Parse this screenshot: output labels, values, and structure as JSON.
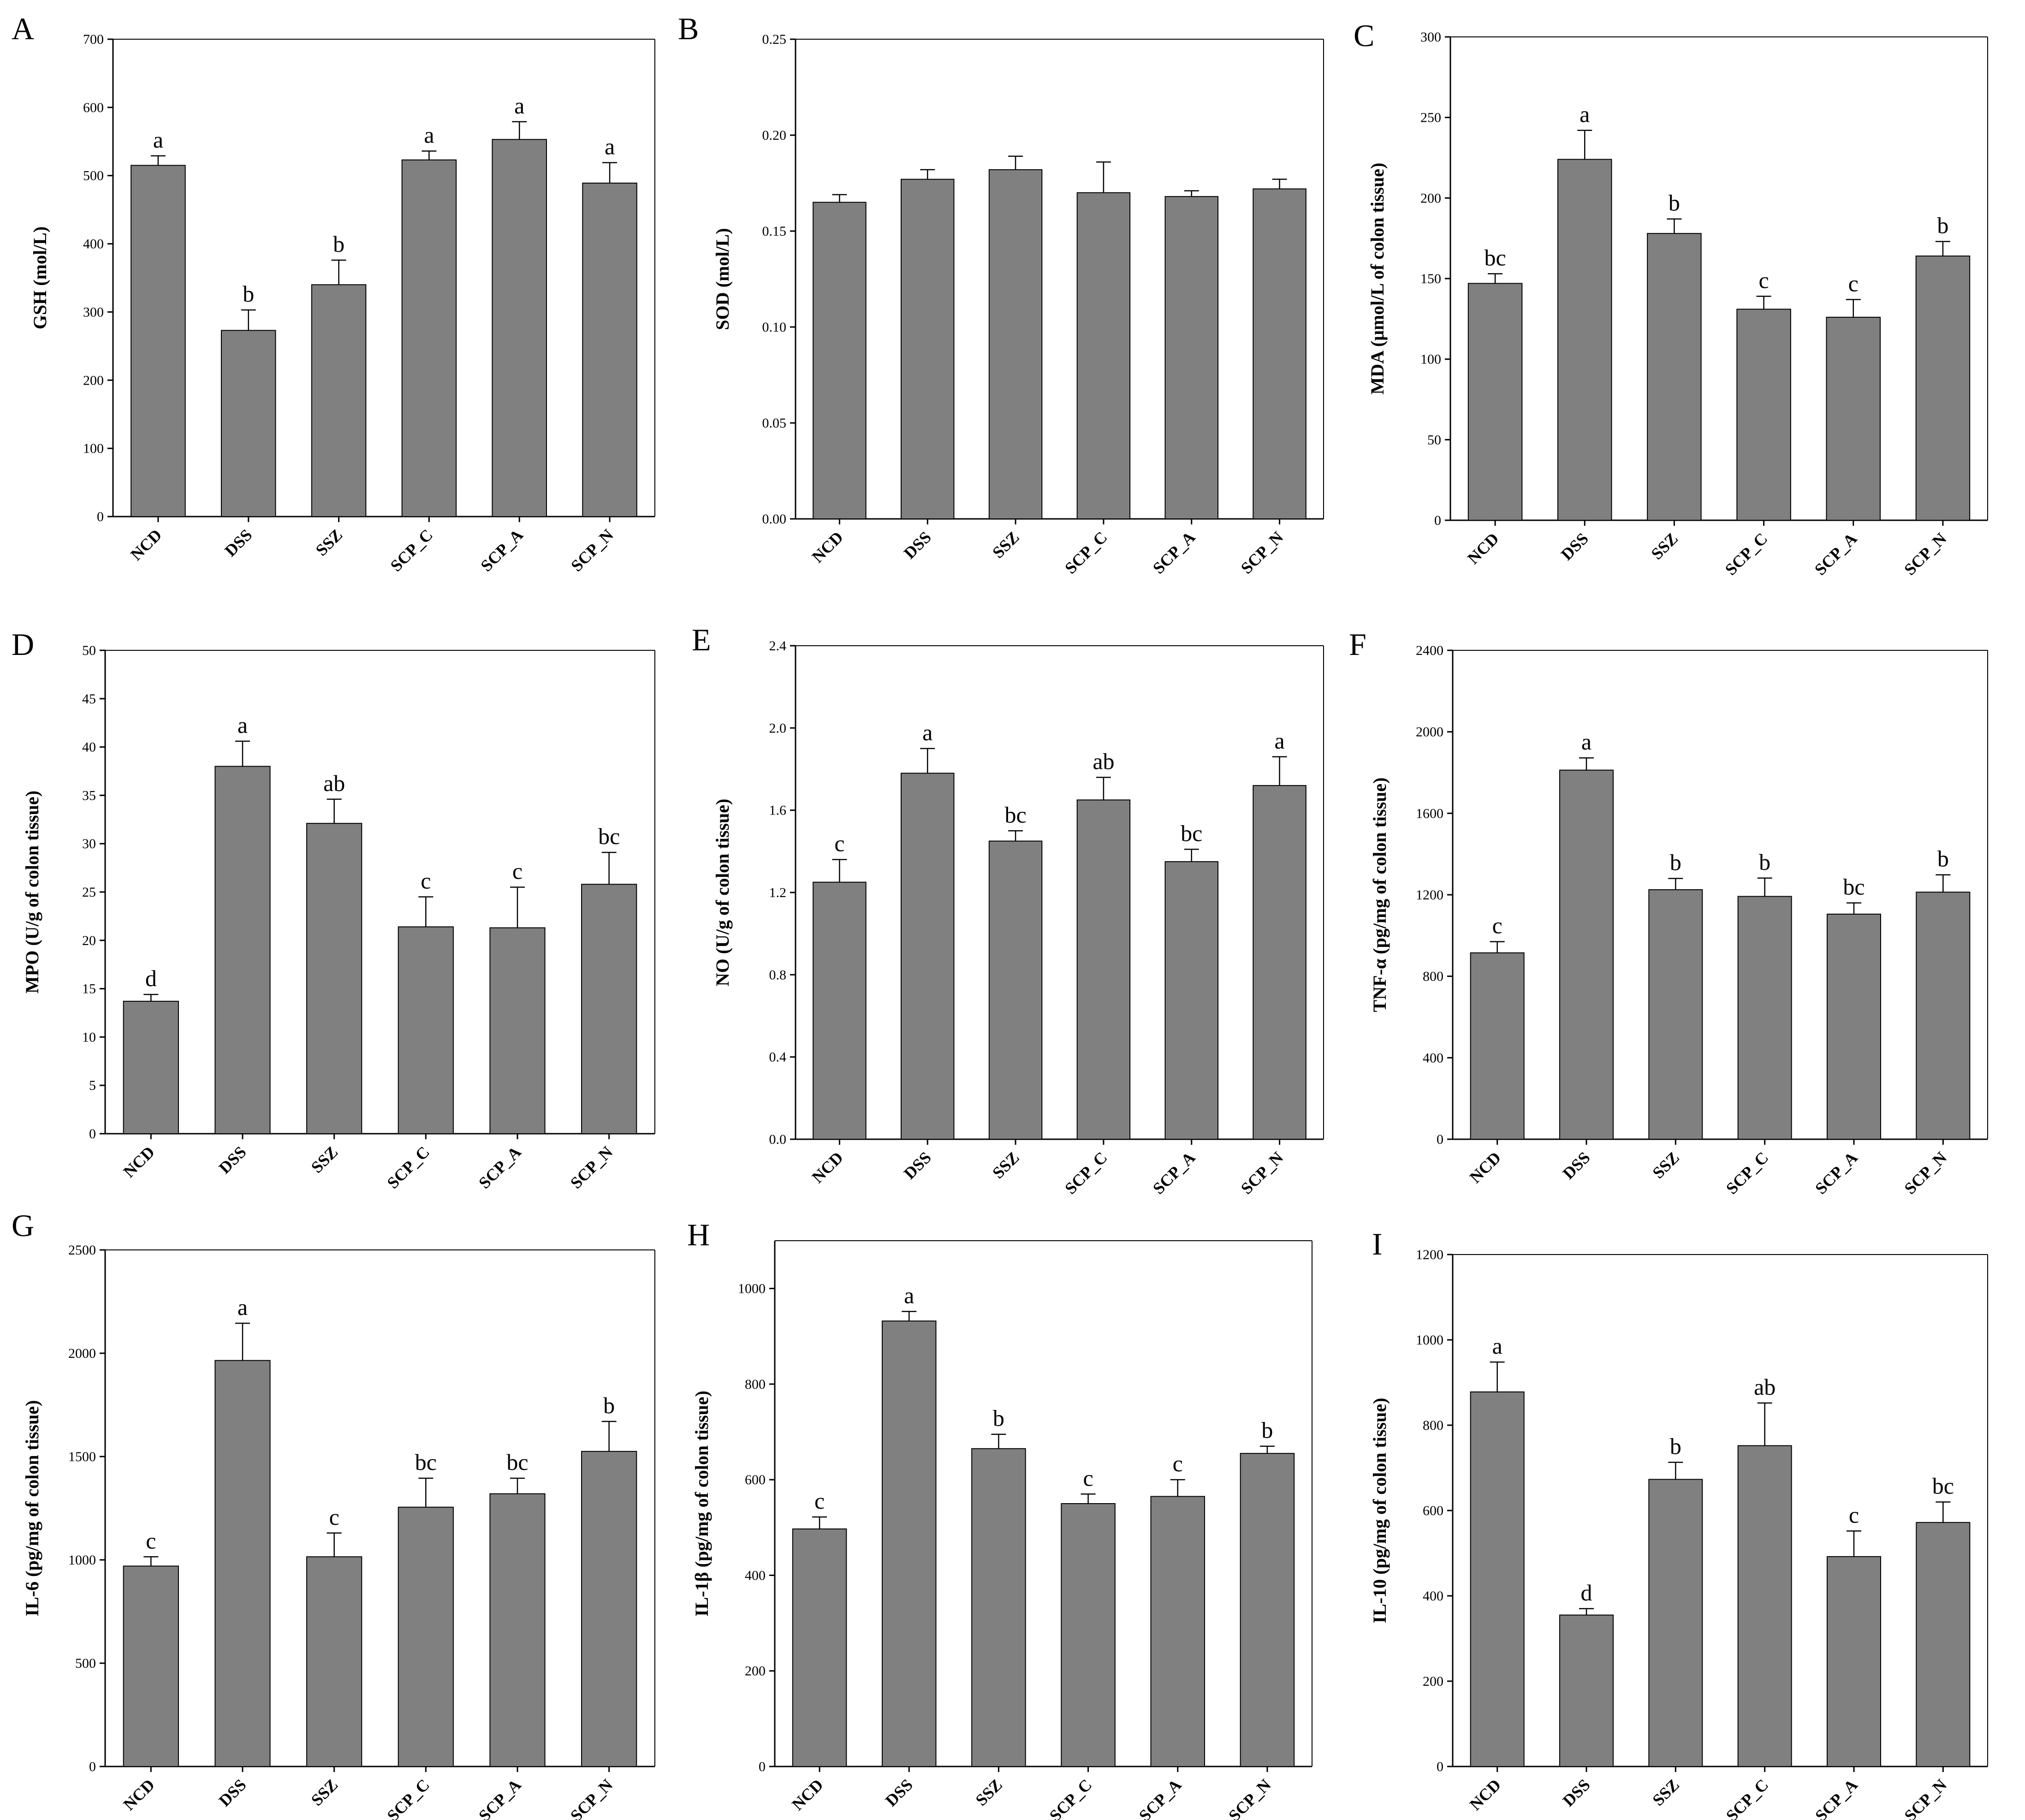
{
  "chart_data": [
    {
      "panel": "A",
      "type": "bar",
      "categories": [
        "NCD",
        "DSS",
        "SSZ",
        "SCP_C",
        "SCP_A",
        "SCP_N"
      ],
      "values": [
        515,
        273,
        340,
        523,
        553,
        489
      ],
      "errors": [
        14,
        30,
        36,
        13,
        26,
        30
      ],
      "labels": [
        "a",
        "b",
        "b",
        "a",
        "a",
        "a"
      ],
      "ylabel": "GSH (mol/L)",
      "ylim": [
        0,
        700
      ],
      "yticks": [
        0,
        100,
        200,
        300,
        400,
        500,
        600,
        700
      ],
      "bar_color": "#808080"
    },
    {
      "panel": "B",
      "type": "bar",
      "categories": [
        "NCD",
        "DSS",
        "SSZ",
        "SCP_C",
        "SCP_A",
        "SCP_N"
      ],
      "values": [
        0.165,
        0.177,
        0.182,
        0.17,
        0.168,
        0.172
      ],
      "errors": [
        0.004,
        0.005,
        0.007,
        0.016,
        0.003,
        0.005
      ],
      "labels": [
        "",
        "",
        "",
        "",
        "",
        ""
      ],
      "ylabel": "SOD (mol/L)",
      "ylim": [
        0,
        0.25
      ],
      "yticks": [
        "0.00",
        "0.05",
        "0.10",
        "0.15",
        "0.20",
        "0.25"
      ],
      "bar_color": "#808080"
    },
    {
      "panel": "C",
      "type": "bar",
      "categories": [
        "NCD",
        "DSS",
        "SSZ",
        "SCP_C",
        "SCP_A",
        "SCP_N"
      ],
      "values": [
        147,
        224,
        178,
        131,
        126,
        164
      ],
      "errors": [
        6,
        18,
        9,
        8,
        11,
        9
      ],
      "labels": [
        "bc",
        "a",
        "b",
        "c",
        "c",
        "b"
      ],
      "ylabel": "MDA (μmol/L of colon tissue)",
      "ylim": [
        0,
        300
      ],
      "yticks": [
        0,
        50,
        100,
        150,
        200,
        250,
        300
      ],
      "bar_color": "#808080"
    },
    {
      "panel": "D",
      "type": "bar",
      "categories": [
        "NCD",
        "DSS",
        "SSZ",
        "SCP_C",
        "SCP_A",
        "SCP_N"
      ],
      "values": [
        13.7,
        38.0,
        32.1,
        21.4,
        21.3,
        25.8
      ],
      "errors": [
        0.7,
        2.6,
        2.5,
        3.1,
        4.2,
        3.3
      ],
      "labels": [
        "d",
        "a",
        "ab",
        "c",
        "c",
        "bc"
      ],
      "ylabel": "MPO (U/g of colon tissue)",
      "ylim": [
        0,
        50
      ],
      "yticks": [
        0,
        5,
        10,
        15,
        20,
        25,
        30,
        35,
        40,
        45,
        50
      ],
      "bar_color": "#808080"
    },
    {
      "panel": "E",
      "type": "bar",
      "categories": [
        "NCD",
        "DSS",
        "SSZ",
        "SCP_C",
        "SCP_A",
        "SCP_N"
      ],
      "values": [
        1.25,
        1.78,
        1.45,
        1.65,
        1.35,
        1.72
      ],
      "errors": [
        0.11,
        0.12,
        0.05,
        0.11,
        0.06,
        0.14
      ],
      "labels": [
        "c",
        "a",
        "bc",
        "ab",
        "bc",
        "a"
      ],
      "ylabel": "NO (U/g of colon tissue)",
      "ylim": [
        0,
        2.4
      ],
      "yticks": [
        "0.0",
        "0.4",
        "0.8",
        "1.2",
        "1.6",
        "2.0",
        "2.4"
      ],
      "bar_color": "#808080"
    },
    {
      "panel": "F",
      "type": "bar",
      "categories": [
        "NCD",
        "DSS",
        "SSZ",
        "SCP_C",
        "SCP_A",
        "SCP_N"
      ],
      "values": [
        915,
        1812,
        1225,
        1192,
        1105,
        1213
      ],
      "errors": [
        55,
        60,
        55,
        90,
        55,
        85
      ],
      "labels": [
        "c",
        "a",
        "b",
        "b",
        "bc",
        "b"
      ],
      "ylabel": "TNF-α (pg/mg of colon tissue)",
      "ylim": [
        0,
        2400
      ],
      "yticks": [
        0,
        400,
        800,
        1200,
        1600,
        2000,
        2400
      ],
      "bar_color": "#808080"
    },
    {
      "panel": "G",
      "type": "bar",
      "categories": [
        "NCD",
        "DSS",
        "SSZ",
        "SCP_C",
        "SCP_A",
        "SCP_N"
      ],
      "values": [
        970,
        1965,
        1015,
        1255,
        1320,
        1525
      ],
      "errors": [
        45,
        180,
        115,
        140,
        75,
        145
      ],
      "labels": [
        "c",
        "a",
        "c",
        "bc",
        "bc",
        "b"
      ],
      "ylabel": "IL-6 (pg/mg of colon tissue)",
      "ylim": [
        0,
        2500
      ],
      "yticks": [
        0,
        500,
        1000,
        1500,
        2000,
        2500
      ],
      "bar_color": "#808080"
    },
    {
      "panel": "H",
      "type": "bar",
      "categories": [
        "NCD",
        "DSS",
        "SSZ",
        "SCP_C",
        "SCP_A",
        "SCP_N"
      ],
      "values": [
        497,
        932,
        665,
        550,
        565,
        655
      ],
      "errors": [
        25,
        20,
        30,
        20,
        35,
        15
      ],
      "labels": [
        "c",
        "a",
        "b",
        "c",
        "c",
        "b"
      ],
      "ylabel": "IL-1β (pg/mg of colon tissue)",
      "ylim": [
        0,
        1100
      ],
      "yticks": [
        0,
        200,
        400,
        600,
        800,
        1000
      ],
      "bar_color": "#808080"
    },
    {
      "panel": "I",
      "type": "bar",
      "categories": [
        "NCD",
        "DSS",
        "SSZ",
        "SCP_C",
        "SCP_A",
        "SCP_N"
      ],
      "values": [
        878,
        355,
        673,
        752,
        492,
        572
      ],
      "errors": [
        70,
        15,
        40,
        100,
        60,
        48
      ],
      "labels": [
        "a",
        "d",
        "b",
        "ab",
        "c",
        "bc"
      ],
      "ylabel": "IL-10 (pg/mg of colon tissue)",
      "ylim": [
        0,
        1200
      ],
      "yticks": [
        0,
        200,
        400,
        600,
        800,
        1000,
        1200
      ],
      "bar_color": "#808080"
    }
  ]
}
